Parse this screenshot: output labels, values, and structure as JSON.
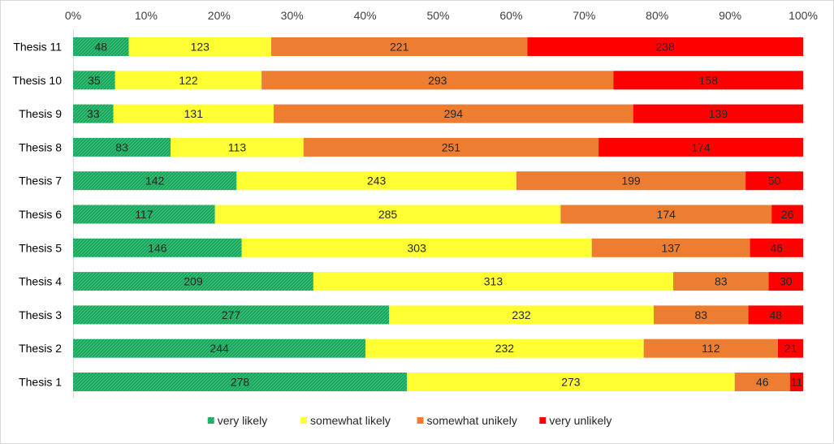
{
  "chart_data": {
    "type": "bar",
    "orientation": "horizontal",
    "stacked": "percent",
    "categories": [
      "Thesis 11",
      "Thesis 10",
      "Thesis 9",
      "Thesis 8",
      "Thesis 7",
      "Thesis 6",
      "Thesis 5",
      "Thesis 4",
      "Thesis 3",
      "Thesis 2",
      "Thesis 1"
    ],
    "series": [
      {
        "name": "very likely",
        "color": "#1aa35a",
        "values": [
          48,
          35,
          33,
          83,
          142,
          117,
          146,
          209,
          277,
          244,
          278
        ]
      },
      {
        "name": "somewhat likely",
        "color": "#ffff33",
        "values": [
          123,
          122,
          131,
          113,
          243,
          285,
          303,
          313,
          232,
          232,
          273
        ]
      },
      {
        "name": "somewhat unikely",
        "color": "#ed7d31",
        "values": [
          221,
          293,
          294,
          251,
          199,
          174,
          137,
          83,
          83,
          112,
          46
        ]
      },
      {
        "name": "very unlikely",
        "color": "#ff0000",
        "values": [
          238,
          158,
          139,
          174,
          50,
          26,
          46,
          30,
          48,
          21,
          11
        ]
      }
    ],
    "x_ticks": [
      "0%",
      "10%",
      "20%",
      "30%",
      "40%",
      "50%",
      "60%",
      "70%",
      "80%",
      "90%",
      "100%"
    ],
    "xlim": [
      0,
      100
    ],
    "x_axis_position": "top",
    "grid": false,
    "legend_position": "bottom",
    "title": "",
    "xlabel": "",
    "ylabel": ""
  }
}
